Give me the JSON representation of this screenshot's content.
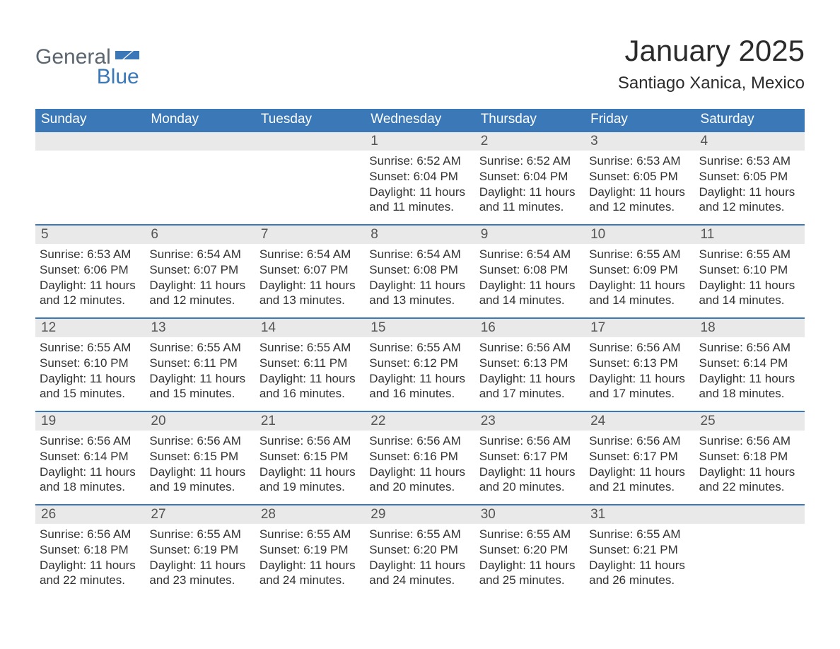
{
  "logo": {
    "word1": "General",
    "word2": "Blue"
  },
  "title": "January 2025",
  "location": "Santiago Xanica, Mexico",
  "colors": {
    "header_blue": "#3a78b8",
    "daynum_bg": "#e9e9e9",
    "text": "#333333",
    "logo_gray": "#5c6670"
  },
  "weekdays": [
    "Sunday",
    "Monday",
    "Tuesday",
    "Wednesday",
    "Thursday",
    "Friday",
    "Saturday"
  ],
  "weeks": [
    [
      {
        "num": "",
        "sunrise": "",
        "sunset": "",
        "daylight1": "",
        "daylight2": ""
      },
      {
        "num": "",
        "sunrise": "",
        "sunset": "",
        "daylight1": "",
        "daylight2": ""
      },
      {
        "num": "",
        "sunrise": "",
        "sunset": "",
        "daylight1": "",
        "daylight2": ""
      },
      {
        "num": "1",
        "sunrise": "Sunrise: 6:52 AM",
        "sunset": "Sunset: 6:04 PM",
        "daylight1": "Daylight: 11 hours",
        "daylight2": "and 11 minutes."
      },
      {
        "num": "2",
        "sunrise": "Sunrise: 6:52 AM",
        "sunset": "Sunset: 6:04 PM",
        "daylight1": "Daylight: 11 hours",
        "daylight2": "and 11 minutes."
      },
      {
        "num": "3",
        "sunrise": "Sunrise: 6:53 AM",
        "sunset": "Sunset: 6:05 PM",
        "daylight1": "Daylight: 11 hours",
        "daylight2": "and 12 minutes."
      },
      {
        "num": "4",
        "sunrise": "Sunrise: 6:53 AM",
        "sunset": "Sunset: 6:05 PM",
        "daylight1": "Daylight: 11 hours",
        "daylight2": "and 12 minutes."
      }
    ],
    [
      {
        "num": "5",
        "sunrise": "Sunrise: 6:53 AM",
        "sunset": "Sunset: 6:06 PM",
        "daylight1": "Daylight: 11 hours",
        "daylight2": "and 12 minutes."
      },
      {
        "num": "6",
        "sunrise": "Sunrise: 6:54 AM",
        "sunset": "Sunset: 6:07 PM",
        "daylight1": "Daylight: 11 hours",
        "daylight2": "and 12 minutes."
      },
      {
        "num": "7",
        "sunrise": "Sunrise: 6:54 AM",
        "sunset": "Sunset: 6:07 PM",
        "daylight1": "Daylight: 11 hours",
        "daylight2": "and 13 minutes."
      },
      {
        "num": "8",
        "sunrise": "Sunrise: 6:54 AM",
        "sunset": "Sunset: 6:08 PM",
        "daylight1": "Daylight: 11 hours",
        "daylight2": "and 13 minutes."
      },
      {
        "num": "9",
        "sunrise": "Sunrise: 6:54 AM",
        "sunset": "Sunset: 6:08 PM",
        "daylight1": "Daylight: 11 hours",
        "daylight2": "and 14 minutes."
      },
      {
        "num": "10",
        "sunrise": "Sunrise: 6:55 AM",
        "sunset": "Sunset: 6:09 PM",
        "daylight1": "Daylight: 11 hours",
        "daylight2": "and 14 minutes."
      },
      {
        "num": "11",
        "sunrise": "Sunrise: 6:55 AM",
        "sunset": "Sunset: 6:10 PM",
        "daylight1": "Daylight: 11 hours",
        "daylight2": "and 14 minutes."
      }
    ],
    [
      {
        "num": "12",
        "sunrise": "Sunrise: 6:55 AM",
        "sunset": "Sunset: 6:10 PM",
        "daylight1": "Daylight: 11 hours",
        "daylight2": "and 15 minutes."
      },
      {
        "num": "13",
        "sunrise": "Sunrise: 6:55 AM",
        "sunset": "Sunset: 6:11 PM",
        "daylight1": "Daylight: 11 hours",
        "daylight2": "and 15 minutes."
      },
      {
        "num": "14",
        "sunrise": "Sunrise: 6:55 AM",
        "sunset": "Sunset: 6:11 PM",
        "daylight1": "Daylight: 11 hours",
        "daylight2": "and 16 minutes."
      },
      {
        "num": "15",
        "sunrise": "Sunrise: 6:55 AM",
        "sunset": "Sunset: 6:12 PM",
        "daylight1": "Daylight: 11 hours",
        "daylight2": "and 16 minutes."
      },
      {
        "num": "16",
        "sunrise": "Sunrise: 6:56 AM",
        "sunset": "Sunset: 6:13 PM",
        "daylight1": "Daylight: 11 hours",
        "daylight2": "and 17 minutes."
      },
      {
        "num": "17",
        "sunrise": "Sunrise: 6:56 AM",
        "sunset": "Sunset: 6:13 PM",
        "daylight1": "Daylight: 11 hours",
        "daylight2": "and 17 minutes."
      },
      {
        "num": "18",
        "sunrise": "Sunrise: 6:56 AM",
        "sunset": "Sunset: 6:14 PM",
        "daylight1": "Daylight: 11 hours",
        "daylight2": "and 18 minutes."
      }
    ],
    [
      {
        "num": "19",
        "sunrise": "Sunrise: 6:56 AM",
        "sunset": "Sunset: 6:14 PM",
        "daylight1": "Daylight: 11 hours",
        "daylight2": "and 18 minutes."
      },
      {
        "num": "20",
        "sunrise": "Sunrise: 6:56 AM",
        "sunset": "Sunset: 6:15 PM",
        "daylight1": "Daylight: 11 hours",
        "daylight2": "and 19 minutes."
      },
      {
        "num": "21",
        "sunrise": "Sunrise: 6:56 AM",
        "sunset": "Sunset: 6:15 PM",
        "daylight1": "Daylight: 11 hours",
        "daylight2": "and 19 minutes."
      },
      {
        "num": "22",
        "sunrise": "Sunrise: 6:56 AM",
        "sunset": "Sunset: 6:16 PM",
        "daylight1": "Daylight: 11 hours",
        "daylight2": "and 20 minutes."
      },
      {
        "num": "23",
        "sunrise": "Sunrise: 6:56 AM",
        "sunset": "Sunset: 6:17 PM",
        "daylight1": "Daylight: 11 hours",
        "daylight2": "and 20 minutes."
      },
      {
        "num": "24",
        "sunrise": "Sunrise: 6:56 AM",
        "sunset": "Sunset: 6:17 PM",
        "daylight1": "Daylight: 11 hours",
        "daylight2": "and 21 minutes."
      },
      {
        "num": "25",
        "sunrise": "Sunrise: 6:56 AM",
        "sunset": "Sunset: 6:18 PM",
        "daylight1": "Daylight: 11 hours",
        "daylight2": "and 22 minutes."
      }
    ],
    [
      {
        "num": "26",
        "sunrise": "Sunrise: 6:56 AM",
        "sunset": "Sunset: 6:18 PM",
        "daylight1": "Daylight: 11 hours",
        "daylight2": "and 22 minutes."
      },
      {
        "num": "27",
        "sunrise": "Sunrise: 6:55 AM",
        "sunset": "Sunset: 6:19 PM",
        "daylight1": "Daylight: 11 hours",
        "daylight2": "and 23 minutes."
      },
      {
        "num": "28",
        "sunrise": "Sunrise: 6:55 AM",
        "sunset": "Sunset: 6:19 PM",
        "daylight1": "Daylight: 11 hours",
        "daylight2": "and 24 minutes."
      },
      {
        "num": "29",
        "sunrise": "Sunrise: 6:55 AM",
        "sunset": "Sunset: 6:20 PM",
        "daylight1": "Daylight: 11 hours",
        "daylight2": "and 24 minutes."
      },
      {
        "num": "30",
        "sunrise": "Sunrise: 6:55 AM",
        "sunset": "Sunset: 6:20 PM",
        "daylight1": "Daylight: 11 hours",
        "daylight2": "and 25 minutes."
      },
      {
        "num": "31",
        "sunrise": "Sunrise: 6:55 AM",
        "sunset": "Sunset: 6:21 PM",
        "daylight1": "Daylight: 11 hours",
        "daylight2": "and 26 minutes."
      },
      {
        "num": "",
        "sunrise": "",
        "sunset": "",
        "daylight1": "",
        "daylight2": ""
      }
    ]
  ]
}
